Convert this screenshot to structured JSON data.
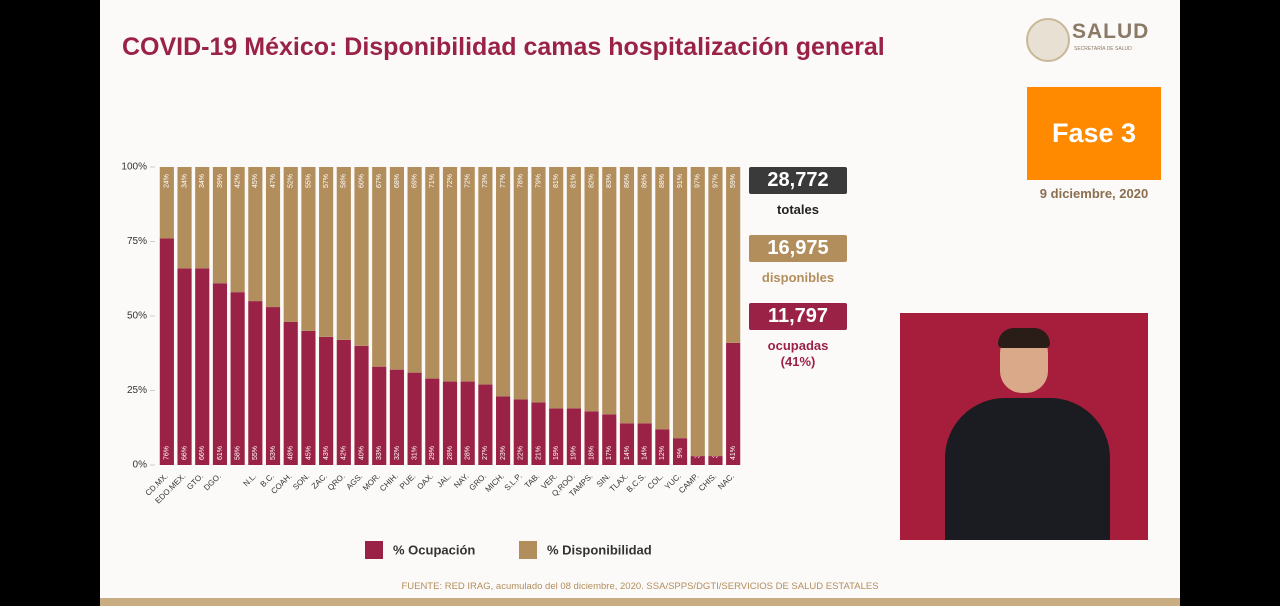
{
  "header": {
    "logo": "SALUD",
    "logo_subtitle": "SECRETARÍA DE SALUD",
    "phase": "Fase 3",
    "date": "9 diciembre, 2020"
  },
  "chart_data": {
    "type": "stacked_bar",
    "title": "COVID-19 México: Disponibilidad camas hospitalización general",
    "categories": [
      "CD.MX.",
      "EDO.MEX.",
      "GTO.",
      "DGO.",
      null,
      "N.L.",
      "B.C.",
      "COAH.",
      "SON.",
      "ZAC.",
      "QRO.",
      "AGS.",
      "MOR.",
      "CHIH.",
      "PUE.",
      "OAX.",
      "JAL.",
      "NAY.",
      "GRO.",
      "MICH.",
      "S.L.P.",
      "TAB.",
      "VER.",
      "Q.ROO.",
      "TAMPS.",
      "SIN.",
      "TLAX.",
      "B.C.S.",
      "COL.",
      "YUC.",
      "CAMP.",
      "CHIS.",
      "NAC."
    ],
    "series": [
      {
        "name": "% Ocupación",
        "color": "#9b2247",
        "values": [
          76,
          66,
          66,
          61,
          58,
          55,
          53,
          48,
          45,
          43,
          42,
          40,
          33,
          32,
          31,
          29,
          28,
          28,
          27,
          23,
          22,
          21,
          19,
          19,
          18,
          17,
          14,
          14,
          12,
          9,
          3,
          3,
          41
        ],
        "value_labels": [
          "76%",
          "66%",
          "66%",
          "61%",
          "58%",
          "55%",
          "53%",
          "48%",
          "45%",
          "43%",
          "42%",
          "40%",
          "33%",
          "32%",
          "31%",
          "29%",
          "28%",
          "28%",
          "27%",
          "23%",
          "22%",
          "21%",
          "19%",
          "19%",
          "18%",
          "17%",
          "14%",
          "14%",
          "12%",
          "9%",
          "3%",
          "3%",
          "41%"
        ]
      },
      {
        "name": "% Disponibilidad",
        "color": "#b38e5d",
        "values": [
          24,
          34,
          34,
          39,
          42,
          45,
          47,
          52,
          55,
          57,
          58,
          60,
          67,
          68,
          69,
          71,
          72,
          72,
          73,
          77,
          78,
          79,
          81,
          81,
          82,
          83,
          86,
          86,
          88,
          91,
          97,
          97,
          59
        ],
        "value_labels": [
          "24%",
          "34%",
          "34%",
          "39%",
          "42%",
          "45%",
          "47%",
          "52%",
          "55%",
          "57%",
          "58%",
          "60%",
          "67%",
          "68%",
          "69%",
          "71%",
          "72%",
          "72%",
          "73%",
          "77%",
          "78%",
          "79%",
          "81%",
          "81%",
          "82%",
          "83%",
          "86%",
          "86%",
          "88%",
          "91%",
          "97%",
          "97%",
          "59%"
        ]
      }
    ],
    "ylim": [
      0,
      100
    ],
    "yticks": [
      {
        "value": 0,
        "label": "0%"
      },
      {
        "value": 25,
        "label": "25%"
      },
      {
        "value": 50,
        "label": "50%"
      },
      {
        "value": 75,
        "label": "75%"
      },
      {
        "value": 100,
        "label": "100%"
      }
    ],
    "legend": "bottom"
  },
  "summary": [
    {
      "number": "28,772",
      "label": "totales",
      "color": "#3a3a3a"
    },
    {
      "number": "16,975",
      "label": "disponibles",
      "color": "#b38e5d"
    },
    {
      "number": "11,797",
      "label": "ocupadas\n(41%)",
      "color": "#9b2247"
    }
  ],
  "footer": "FUENTE: RED IRAG, acumulado del 08 diciembre, 2020.  SSA/SPPS/DGTI/SERVICIOS DE SALUD ESTATALES"
}
